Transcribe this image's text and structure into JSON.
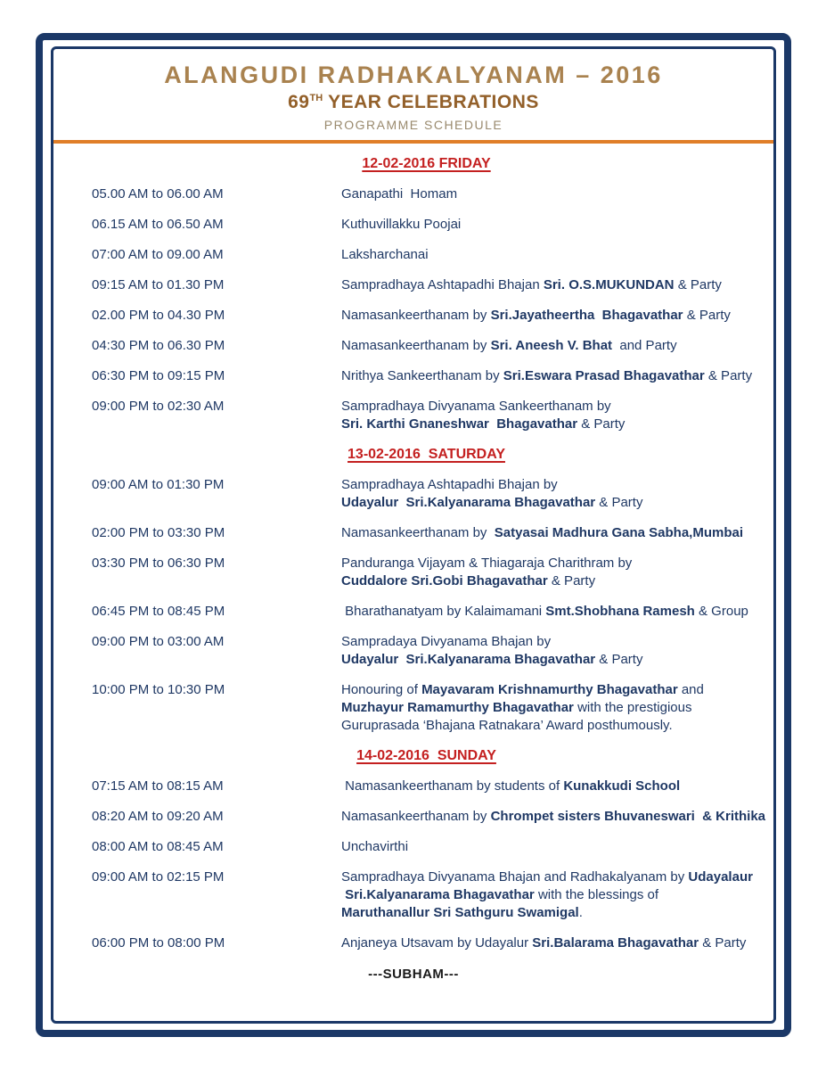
{
  "header": {
    "title": "ALANGUDI RADHAKALYANAM – 2016",
    "year_number": "69",
    "year_suffix": "TH",
    "year_rest": " YEAR CELEBRATIONS",
    "caption": "PROGRAMME SCHEDULE"
  },
  "colors": {
    "border_navy": "#1B3867",
    "text_navy": "#1F3864",
    "heading_red": "#C42020",
    "title_tan": "#A9824F",
    "subtitle_brown": "#93602A",
    "caption_taupe": "#9A8A6E",
    "rule_orange": "#E07E28"
  },
  "sections": [
    {
      "date_heading": "12-02-2016 FRIDAY",
      "rows": [
        {
          "time": "05.00 AM to 06.00 AM",
          "lines": [
            [
              {
                "t": "Ganapathi  Homam",
                "b": false
              }
            ]
          ]
        },
        {
          "time": "06.15 AM to 06.50 AM",
          "lines": [
            [
              {
                "t": "Kuthuvillakku Poojai",
                "b": false
              }
            ]
          ]
        },
        {
          "time": "07:00 AM to 09.00 AM",
          "lines": [
            [
              {
                "t": "Laksharchanai",
                "b": false
              }
            ]
          ]
        },
        {
          "time": "09:15 AM to 01.30 PM",
          "lines": [
            [
              {
                "t": "Sampradhaya Ashtapadhi Bhajan ",
                "b": false
              },
              {
                "t": "Sri. O.S.MUKUNDAN",
                "b": true
              },
              {
                "t": " & Party",
                "b": false
              }
            ]
          ]
        },
        {
          "time": "02.00 PM to 04.30 PM",
          "lines": [
            [
              {
                "t": "Namasankeerthanam by ",
                "b": false
              },
              {
                "t": "Sri.Jayatheertha  Bhagavathar",
                "b": true
              },
              {
                "t": " & Party",
                "b": false
              }
            ]
          ]
        },
        {
          "time": "04:30 PM to 06.30 PM",
          "lines": [
            [
              {
                "t": "Namasankeerthanam by ",
                "b": false
              },
              {
                "t": "Sri. Aneesh V. Bhat",
                "b": true
              },
              {
                "t": "  and Party",
                "b": false
              }
            ]
          ]
        },
        {
          "time": "06:30 PM to 09:15 PM",
          "lines": [
            [
              {
                "t": "Nrithya Sankeerthanam by ",
                "b": false
              },
              {
                "t": "Sri.Eswara Prasad Bhagavathar",
                "b": true
              },
              {
                "t": " & Party",
                "b": false
              }
            ]
          ]
        },
        {
          "time": "09:00 PM to 02:30 AM",
          "lines": [
            [
              {
                "t": "Sampradhaya Divyanama Sankeerthanam by",
                "b": false
              }
            ],
            [
              {
                "t": "Sri. Karthi Gnaneshwar  Bhagavathar",
                "b": true
              },
              {
                "t": " & Party",
                "b": false
              }
            ]
          ]
        }
      ]
    },
    {
      "date_heading": "13-02-2016  SATURDAY",
      "rows": [
        {
          "time": "09:00 AM to 01:30 PM",
          "lines": [
            [
              {
                "t": "Sampradhaya Ashtapadhi Bhajan by",
                "b": false
              }
            ],
            [
              {
                "t": "Udayalur  Sri.Kalyanarama Bhagavathar",
                "b": true
              },
              {
                "t": " & Party",
                "b": false
              }
            ]
          ]
        },
        {
          "time": "02:00 PM to 03:30 PM",
          "lines": [
            [
              {
                "t": "Namasankeerthanam by  ",
                "b": false
              },
              {
                "t": "Satyasai Madhura Gana Sabha,Mumbai",
                "b": true
              }
            ]
          ]
        },
        {
          "time": "03:30 PM to 06:30 PM",
          "lines": [
            [
              {
                "t": "Panduranga Vijayam & Thiagaraja Charithram by",
                "b": false
              }
            ],
            [
              {
                "t": "Cuddalore Sri.Gobi Bhagavathar",
                "b": true
              },
              {
                "t": " & Party",
                "b": false
              }
            ]
          ]
        },
        {
          "time": "06:45 PM to 08:45 PM",
          "lines": [
            [
              {
                "t": " Bharathanatyam by Kalaimamani ",
                "b": false
              },
              {
                "t": "Smt.Shobhana Ramesh",
                "b": true
              },
              {
                "t": " & Group",
                "b": false
              }
            ]
          ]
        },
        {
          "time": "09:00 PM to 03:00 AM",
          "lines": [
            [
              {
                "t": "Sampradaya Divyanama Bhajan by",
                "b": false
              }
            ],
            [
              {
                "t": "Udayalur  Sri.Kalyanarama Bhagavathar",
                "b": true
              },
              {
                "t": " & Party",
                "b": false
              }
            ]
          ]
        },
        {
          "time": "10:00 PM to 10:30 PM",
          "lines": [
            [
              {
                "t": "Honouring of ",
                "b": false
              },
              {
                "t": "Mayavaram Krishnamurthy Bhagavathar",
                "b": true
              },
              {
                "t": " and",
                "b": false
              }
            ],
            [
              {
                "t": "Muzhayur Ramamurthy Bhagavathar",
                "b": true
              },
              {
                "t": " with the prestigious",
                "b": false
              }
            ],
            [
              {
                "t": "Guruprasada ‘Bhajana Ratnakara’ Award posthumously.",
                "b": false
              }
            ]
          ]
        }
      ]
    },
    {
      "date_heading": "14-02-2016  SUNDAY",
      "rows": [
        {
          "time": "07:15 AM to 08:15 AM",
          "lines": [
            [
              {
                "t": " Namasankeerthanam by students of ",
                "b": false
              },
              {
                "t": "Kunakkudi School",
                "b": true
              }
            ]
          ]
        },
        {
          "time": "08:20 AM to 09:20 AM",
          "lines": [
            [
              {
                "t": "Namasankeerthanam by ",
                "b": false
              },
              {
                "t": "Chrompet sisters Bhuvaneswari  & Krithika",
                "b": true
              }
            ]
          ]
        },
        {
          "time": "08:00 AM to 08:45 AM",
          "lines": [
            [
              {
                "t": "Unchavirthi",
                "b": false
              }
            ]
          ]
        },
        {
          "time": "09:00 AM to 02:15 PM",
          "lines": [
            [
              {
                "t": "Sampradhaya Divyanama Bhajan and Radhakalyanam by ",
                "b": false
              },
              {
                "t": "Udayalaur",
                "b": true
              }
            ],
            [
              {
                "t": " Sri.Kalyanarama Bhagavathar",
                "b": true
              },
              {
                "t": " with the blessings of",
                "b": false
              }
            ],
            [
              {
                "t": "Maruthanallur Sri Sathguru Swamigal",
                "b": true
              },
              {
                "t": ".",
                "b": false
              }
            ]
          ]
        },
        {
          "time": "06:00 PM to 08:00 PM",
          "lines": [
            [
              {
                "t": "Anjaneya Utsavam by Udayalur ",
                "b": false
              },
              {
                "t": "Sri.Balarama Bhagavathar",
                "b": true
              },
              {
                "t": " & Party",
                "b": false
              }
            ]
          ]
        }
      ]
    }
  ],
  "footer": {
    "text": "---SUBHAM---"
  }
}
